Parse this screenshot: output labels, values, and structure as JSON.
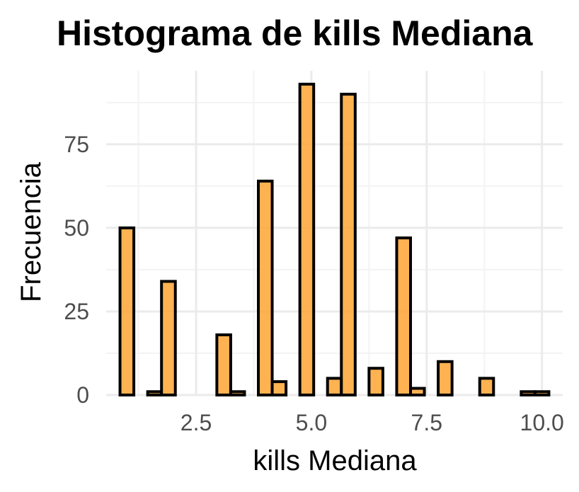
{
  "chart_data": {
    "type": "bar",
    "title": "Histograma de kills Mediana",
    "xlabel": "kills Mediana",
    "ylabel": "Frecuencia",
    "bar_color": "#FFA533",
    "bar_outline": "#000000",
    "grid": true,
    "xlim": [
      0.55,
      10.45
    ],
    "ylim": [
      0,
      97
    ],
    "x_ticks": [
      {
        "value": 2.5,
        "label": "2.5"
      },
      {
        "value": 5.0,
        "label": "5.0"
      },
      {
        "value": 7.5,
        "label": "7.5"
      },
      {
        "value": 10.0,
        "label": "10.0"
      }
    ],
    "y_ticks": [
      {
        "value": 0,
        "label": "0"
      },
      {
        "value": 25,
        "label": "25"
      },
      {
        "value": 50,
        "label": "50"
      },
      {
        "value": 75,
        "label": "75"
      }
    ],
    "bin_width": 0.3,
    "bins": [
      {
        "x": 1.0,
        "count": 50
      },
      {
        "x": 1.3,
        "count": 0
      },
      {
        "x": 1.6,
        "count": 1
      },
      {
        "x": 1.9,
        "count": 34
      },
      {
        "x": 2.2,
        "count": 0
      },
      {
        "x": 2.5,
        "count": 0
      },
      {
        "x": 2.8,
        "count": 0
      },
      {
        "x": 3.1,
        "count": 18
      },
      {
        "x": 3.4,
        "count": 1
      },
      {
        "x": 3.7,
        "count": 0
      },
      {
        "x": 4.0,
        "count": 64
      },
      {
        "x": 4.3,
        "count": 4
      },
      {
        "x": 4.6,
        "count": 0
      },
      {
        "x": 4.9,
        "count": 93
      },
      {
        "x": 5.2,
        "count": 0
      },
      {
        "x": 5.5,
        "count": 5
      },
      {
        "x": 5.8,
        "count": 90
      },
      {
        "x": 6.1,
        "count": 0
      },
      {
        "x": 6.4,
        "count": 8
      },
      {
        "x": 6.7,
        "count": 0
      },
      {
        "x": 7.0,
        "count": 47
      },
      {
        "x": 7.3,
        "count": 2
      },
      {
        "x": 7.6,
        "count": 0
      },
      {
        "x": 7.9,
        "count": 10
      },
      {
        "x": 8.2,
        "count": 0
      },
      {
        "x": 8.5,
        "count": 0
      },
      {
        "x": 8.8,
        "count": 5
      },
      {
        "x": 9.1,
        "count": 0
      },
      {
        "x": 9.4,
        "count": 0
      },
      {
        "x": 9.7,
        "count": 1
      },
      {
        "x": 10.0,
        "count": 1
      }
    ]
  }
}
